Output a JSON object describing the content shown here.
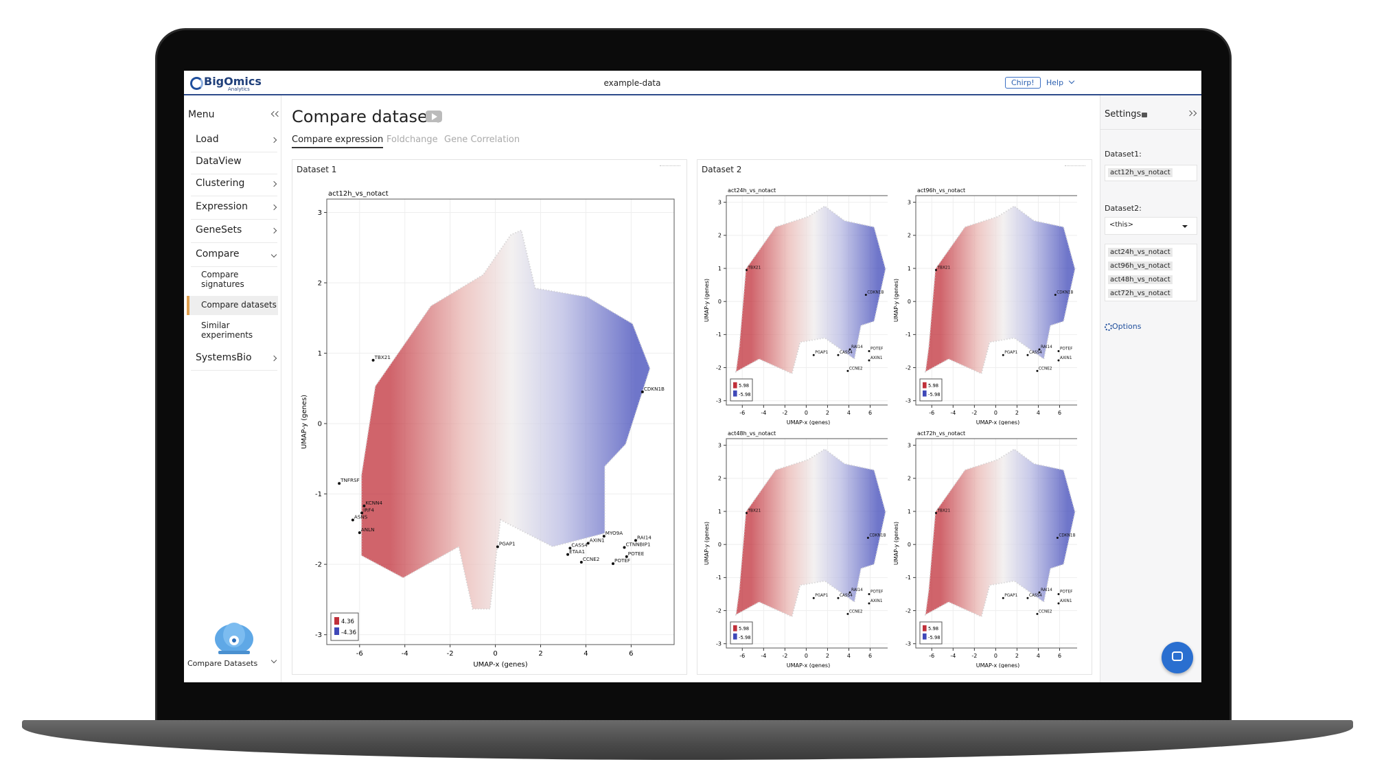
{
  "app": {
    "header": {
      "brand": "BigOmics",
      "brand_subtitle": "Analytics",
      "project": "example-data",
      "chirp": "Chirp!",
      "help": "Help"
    },
    "sidebar": {
      "title": "Menu",
      "items": [
        {
          "label": "Load",
          "has_submenu": true
        },
        {
          "label": "DataView",
          "has_submenu": false
        },
        {
          "label": "Clustering",
          "has_submenu": true
        },
        {
          "label": "Expression",
          "has_submenu": true
        },
        {
          "label": "GeneSets",
          "has_submenu": true
        },
        {
          "label": "Compare",
          "has_submenu": true
        },
        {
          "label": "SystemsBio",
          "has_submenu": true
        }
      ],
      "subitems": [
        {
          "label": "Compare signatures",
          "active": false
        },
        {
          "label": "Compare datasets",
          "active": true
        },
        {
          "label": "Similar experiments",
          "active": false
        }
      ],
      "footer": "Compare Datasets"
    },
    "main": {
      "title": "Compare datasets",
      "tabs": [
        "Compare expression",
        "Foldchange",
        "Gene Correlation"
      ],
      "panels": [
        "Dataset 1",
        "Dataset 2"
      ]
    },
    "settings": {
      "title": "Settings",
      "dataset1_label": "Dataset1:",
      "dataset1_value": "act12h_vs_notact",
      "dataset2_label": "Dataset2:",
      "dataset2_value": "<this>",
      "dataset2_list": [
        "act24h_vs_notact",
        "act96h_vs_notact",
        "act48h_vs_notact",
        "act72h_vs_notact"
      ],
      "options": "Options"
    }
  },
  "chart_data": [
    {
      "type": "scatter",
      "title": "act12h_vs_notact",
      "x_label": "UMAP-x  (genes)",
      "y_label": "UMAP-y  (genes)",
      "xlim": [
        -7.45,
        7.9
      ],
      "ylim": [
        -3.14,
        3.19
      ],
      "xticks": [
        -6,
        -4,
        -2,
        0,
        2,
        4,
        6
      ],
      "yticks": [
        -3,
        -2,
        -1,
        0,
        1,
        2,
        3
      ],
      "grid": true,
      "colorbar": [
        4.36,
        -4.36
      ],
      "annotations": [
        {
          "text": "TBX21",
          "x": -5.4,
          "y": 0.9
        },
        {
          "text": "CDKN1B",
          "x": 6.5,
          "y": 0.45
        },
        {
          "text": "TNFRSF",
          "x": -6.9,
          "y": -0.85
        },
        {
          "text": "KCNN4",
          "x": -5.8,
          "y": -1.17
        },
        {
          "text": "IRF4",
          "x": -5.9,
          "y": -1.27
        },
        {
          "text": "ASNS",
          "x": -6.3,
          "y": -1.37
        },
        {
          "text": "ANLN",
          "x": -6.0,
          "y": -1.55
        },
        {
          "text": "PGAP1",
          "x": 0.1,
          "y": -1.75
        },
        {
          "text": "MYO9A",
          "x": 4.8,
          "y": -1.6
        },
        {
          "text": "RAI14",
          "x": 6.2,
          "y": -1.66
        },
        {
          "text": "CTNNBIP1",
          "x": 5.7,
          "y": -1.76
        },
        {
          "text": "AXIN1",
          "x": 4.1,
          "y": -1.7
        },
        {
          "text": "CASS4",
          "x": 3.3,
          "y": -1.77
        },
        {
          "text": "ETAA1",
          "x": 3.2,
          "y": -1.86
        },
        {
          "text": "CCNE2",
          "x": 3.8,
          "y": -1.97
        },
        {
          "text": "POTEE",
          "x": 5.8,
          "y": -1.89
        },
        {
          "text": "POTEF",
          "x": 5.2,
          "y": -1.99
        }
      ]
    },
    {
      "type": "scatter",
      "title": "act24h_vs_notact",
      "x_label": "UMAP-x  (genes)",
      "y_label": "UMAP-y  (genes)",
      "xlim": [
        -7.5,
        7.9
      ],
      "ylim": [
        -3.13,
        3.2
      ],
      "xticks": [
        -6,
        -4,
        -2,
        0,
        2,
        4,
        6
      ],
      "yticks": [
        -3,
        -2,
        -1,
        0,
        1,
        2,
        3
      ],
      "grid": true,
      "colorbar": [
        5.98,
        -5.98
      ],
      "annotations": [
        {
          "text": "TBX21",
          "x": -5.6,
          "y": 0.95
        },
        {
          "text": "CDKN1B",
          "x": 5.6,
          "y": 0.2
        },
        {
          "text": "PGAP1",
          "x": 0.7,
          "y": -1.62
        },
        {
          "text": "CASS4",
          "x": 3.0,
          "y": -1.62
        },
        {
          "text": "RAI14",
          "x": 4.1,
          "y": -1.45
        },
        {
          "text": "POTEF",
          "x": 5.9,
          "y": -1.5
        },
        {
          "text": "AXIN1",
          "x": 5.9,
          "y": -1.78
        },
        {
          "text": "CCNE2",
          "x": 3.9,
          "y": -2.1
        }
      ]
    },
    {
      "type": "scatter",
      "title": "act96h_vs_notact",
      "x_label": "UMAP-x  (genes)",
      "y_label": "UMAP-y  (genes)",
      "xlim": [
        -7.5,
        7.9
      ],
      "ylim": [
        -3.13,
        3.2
      ],
      "xticks": [
        -6,
        -4,
        -2,
        0,
        2,
        4,
        6
      ],
      "yticks": [
        -3,
        -2,
        -1,
        0,
        1,
        2,
        3
      ],
      "grid": true,
      "colorbar": [
        5.98,
        -5.98
      ],
      "annotations": [
        {
          "text": "TBX21",
          "x": -5.6,
          "y": 0.95
        },
        {
          "text": "CDKN1B",
          "x": 5.6,
          "y": 0.2
        },
        {
          "text": "PGAP1",
          "x": 0.7,
          "y": -1.62
        },
        {
          "text": "CASS4",
          "x": 3.0,
          "y": -1.62
        },
        {
          "text": "RAI14",
          "x": 4.1,
          "y": -1.45
        },
        {
          "text": "POTEF",
          "x": 5.9,
          "y": -1.5
        },
        {
          "text": "AXIN1",
          "x": 5.9,
          "y": -1.78
        },
        {
          "text": "CCNE2",
          "x": 3.9,
          "y": -2.1
        }
      ]
    },
    {
      "type": "scatter",
      "title": "act48h_vs_notact",
      "x_label": "UMAP-x  (genes)",
      "y_label": "UMAP-y  (genes)",
      "xlim": [
        -7.5,
        7.9
      ],
      "ylim": [
        -3.13,
        3.2
      ],
      "xticks": [
        -6,
        -4,
        -2,
        0,
        2,
        4,
        6
      ],
      "yticks": [
        -3,
        -2,
        -1,
        0,
        1,
        2,
        3
      ],
      "grid": true,
      "colorbar": [
        5.98,
        -5.98
      ],
      "annotations": [
        {
          "text": "TBX21",
          "x": -5.6,
          "y": 0.95
        },
        {
          "text": "CDKN1B",
          "x": 5.8,
          "y": 0.2
        },
        {
          "text": "PGAP1",
          "x": 0.7,
          "y": -1.62
        },
        {
          "text": "CASS4",
          "x": 3.0,
          "y": -1.62
        },
        {
          "text": "RAI14",
          "x": 4.1,
          "y": -1.45
        },
        {
          "text": "POTEF",
          "x": 5.9,
          "y": -1.5
        },
        {
          "text": "AXIN1",
          "x": 5.9,
          "y": -1.78
        },
        {
          "text": "CCNE2",
          "x": 3.9,
          "y": -2.1
        }
      ]
    },
    {
      "type": "scatter",
      "title": "act72h_vs_notact",
      "x_label": "UMAP-x  (genes)",
      "y_label": "UMAP-y  (genes)",
      "xlim": [
        -7.5,
        7.9
      ],
      "ylim": [
        -3.13,
        3.2
      ],
      "xticks": [
        -6,
        -4,
        -2,
        0,
        2,
        4,
        6
      ],
      "yticks": [
        -3,
        -2,
        -1,
        0,
        1,
        2,
        3
      ],
      "grid": true,
      "colorbar": [
        5.98,
        -5.98
      ],
      "annotations": [
        {
          "text": "TBX21",
          "x": -5.6,
          "y": 0.95
        },
        {
          "text": "CDKN1B",
          "x": 5.8,
          "y": 0.2
        },
        {
          "text": "PGAP1",
          "x": 0.7,
          "y": -1.62
        },
        {
          "text": "CASS4",
          "x": 3.0,
          "y": -1.62
        },
        {
          "text": "RAI14",
          "x": 4.1,
          "y": -1.45
        },
        {
          "text": "POTEF",
          "x": 5.9,
          "y": -1.5
        },
        {
          "text": "AXIN1",
          "x": 5.9,
          "y": -1.78
        },
        {
          "text": "CCNE2",
          "x": 3.9,
          "y": -2.1
        }
      ]
    }
  ]
}
